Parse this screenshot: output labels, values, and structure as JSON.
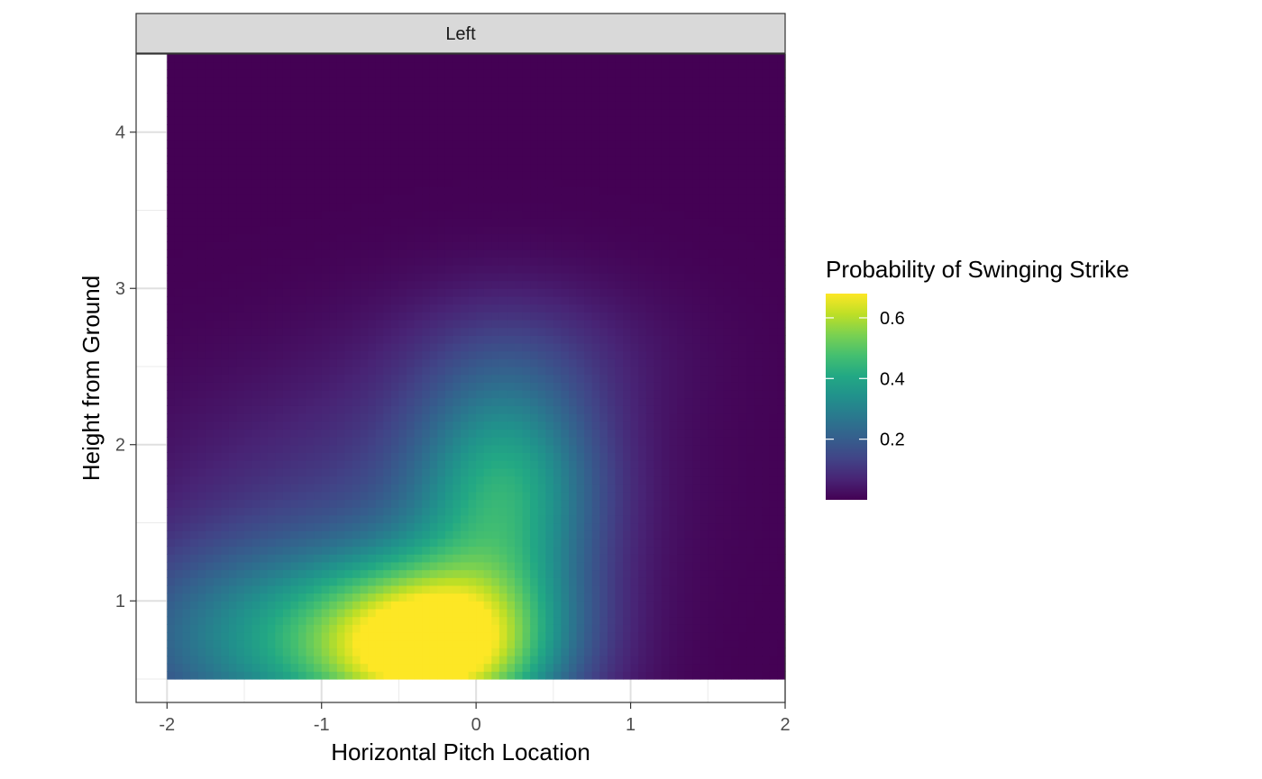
{
  "chart_data": {
    "type": "heatmap",
    "facet_label": "Left",
    "xlabel": "Horizontal Pitch Location",
    "ylabel": "Height from Ground",
    "xlim": [
      -2.2,
      2.0
    ],
    "ylim": [
      0.35,
      4.5
    ],
    "x_ticks": [
      -2,
      -1,
      0,
      1,
      2
    ],
    "x_tick_labels": [
      "-2",
      "-1",
      "0",
      "1",
      "2"
    ],
    "y_ticks": [
      1,
      2,
      3,
      4
    ],
    "y_tick_labels": [
      "1",
      "2",
      "3",
      "4"
    ],
    "data_range": {
      "x": [
        -2.0,
        2.0
      ],
      "y": [
        0.5,
        4.5
      ]
    },
    "grid": true,
    "theme": "bw",
    "colorscale": "viridis",
    "legend": {
      "title": "Probability of Swinging Strike",
      "placement": "right",
      "range": [
        0.0,
        0.68
      ],
      "breaks": [
        0.2,
        0.4,
        0.6
      ],
      "break_labels": [
        "0.2",
        "0.4",
        "0.6"
      ]
    },
    "surface_features": {
      "peak": {
        "x": -0.25,
        "y": 0.7,
        "value": 0.68
      },
      "ridge_upper": {
        "x": 0.2,
        "y": 1.7,
        "value": 0.35
      },
      "low_region": "top and right edges near 0"
    }
  }
}
